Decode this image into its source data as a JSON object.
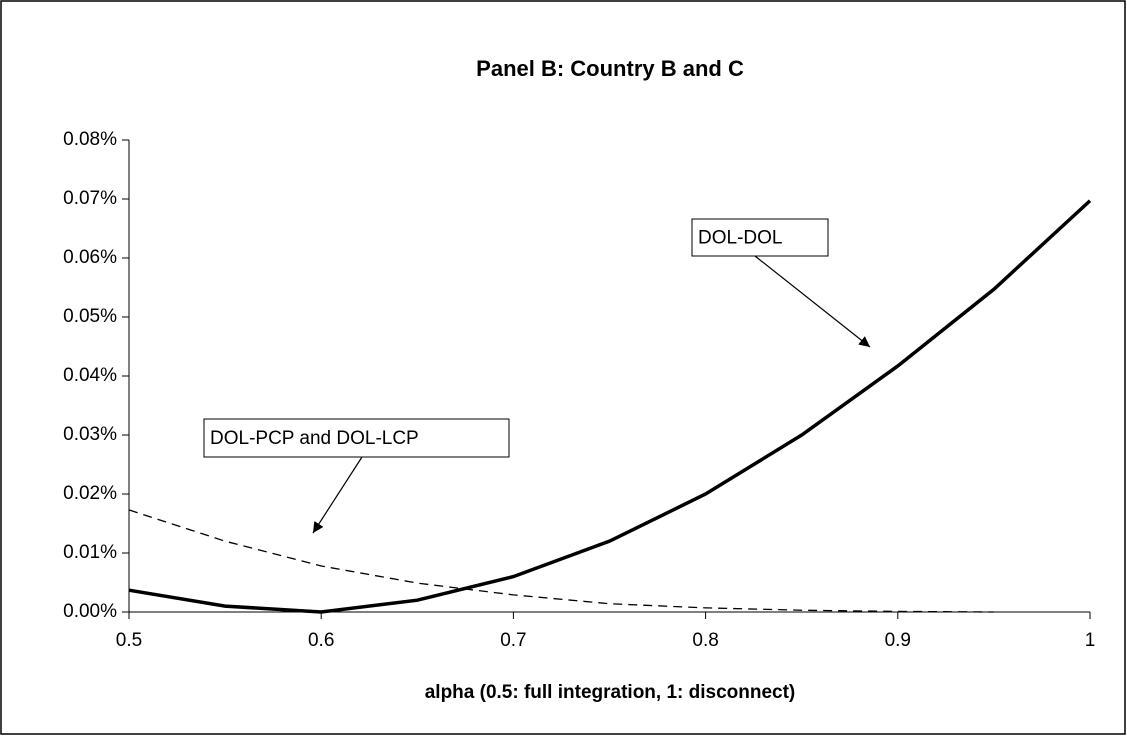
{
  "chart_data": {
    "type": "line",
    "title": "Panel B: Country B and C",
    "x_label": "alpha (0.5: full integration, 1: disconnect)",
    "x": [
      0.5,
      0.55,
      0.6,
      0.65,
      0.7,
      0.75,
      0.8,
      0.85,
      0.9,
      0.95,
      1
    ],
    "series": [
      {
        "name": "DOL-DOL",
        "color": "#000000",
        "dash": false,
        "values": [
          0.0037,
          0.001,
          0.0,
          0.002,
          0.006,
          0.012,
          0.02,
          0.03,
          0.0417,
          0.0547,
          0.0697
        ]
      },
      {
        "name": "DOL-PCP and DOL-LCP",
        "color": "#000000",
        "dash": true,
        "values": [
          0.0173,
          0.012,
          0.0078,
          0.0049,
          0.0029,
          0.0014,
          0.0007,
          0.0003,
          0.0001,
          0.0,
          null
        ]
      }
    ],
    "xlim": [
      0.5,
      1
    ],
    "xticks": [
      0.5,
      0.6,
      0.7,
      0.8,
      0.9,
      1
    ],
    "ylim": [
      0,
      0.08
    ],
    "yticks": [
      {
        "value": 0,
        "label": "0.00%"
      },
      {
        "value": 0.01,
        "label": "0.01%"
      },
      {
        "value": 0.02,
        "label": "0.02%"
      },
      {
        "value": 0.03,
        "label": "0.03%"
      },
      {
        "value": 0.04,
        "label": "0.04%"
      },
      {
        "value": 0.05,
        "label": "0.05%"
      },
      {
        "value": 0.06,
        "label": "0.06%"
      },
      {
        "value": 0.07,
        "label": "0.07%"
      },
      {
        "value": 0.08,
        "label": "0.08%"
      }
    ],
    "grid": false
  }
}
